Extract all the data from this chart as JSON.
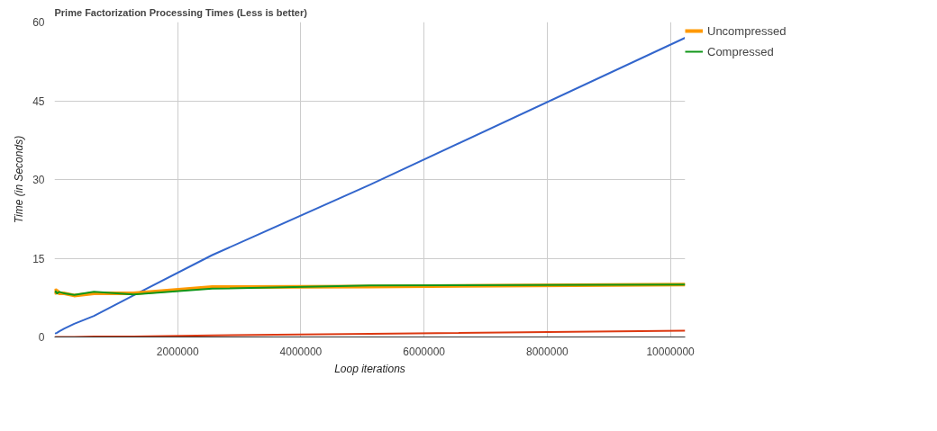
{
  "chart_data": {
    "type": "line",
    "title": "Prime Factorization Processing Times (Less is better)",
    "xlabel": "Loop iterations",
    "ylabel": "Time (in Seconds)",
    "x": [
      10000,
      20000,
      40000,
      80000,
      160000,
      320000,
      640000,
      1280000,
      2560000,
      5120000,
      10240000
    ],
    "series": [
      {
        "color": "#3366cc",
        "values": [
          0.6,
          0.7,
          0.8,
          1.1,
          1.6,
          2.5,
          4,
          7.9,
          15.6,
          29,
          57
        ]
      },
      {
        "color": "#dc3912",
        "values": [
          0,
          0,
          0,
          0,
          0,
          0,
          0.1,
          0.1,
          0.3,
          0.6,
          1.2
        ]
      },
      {
        "name": "Uncompressed",
        "color": "#ff9900",
        "values": [
          9.2,
          8.4,
          8.8,
          8.3,
          8.3,
          7.9,
          8.3,
          8.3,
          9.5,
          9.6,
          10
        ]
      },
      {
        "name": "Compressed",
        "color": "#109618",
        "values": [
          8.4,
          8.7,
          8.3,
          8.6,
          8.3,
          8,
          8.6,
          8.1,
          9.2,
          9.8,
          10
        ]
      }
    ],
    "xlim": [
      0,
      10240000
    ],
    "xticks": [
      2000000,
      4000000,
      6000000,
      8000000,
      10000000
    ],
    "ylim": [
      0,
      60
    ],
    "yticks": [
      0,
      15,
      30,
      45,
      60
    ],
    "grid": true,
    "legend": "right"
  }
}
